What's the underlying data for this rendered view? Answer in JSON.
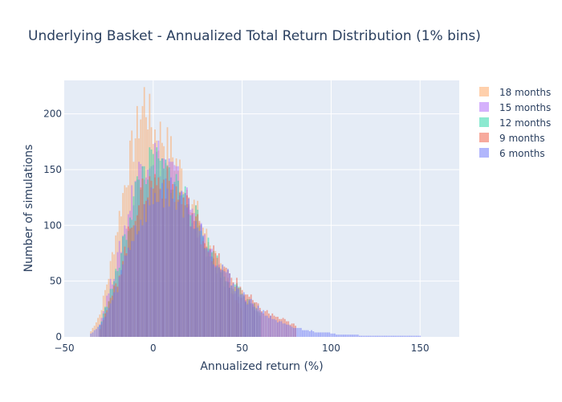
{
  "chart_data": {
    "type": "bar",
    "title": "Underlying Basket - Annualized Total Return Distribution (1% bins)",
    "xlabel": "Annualized return (%)",
    "ylabel": "Number of simulations",
    "xlim": [
      -50,
      172
    ],
    "ylim": [
      0,
      230
    ],
    "x_ticks": [
      -50,
      0,
      50,
      100,
      150
    ],
    "y_ticks": [
      0,
      50,
      100,
      150,
      200
    ],
    "bin_width_pct": 1,
    "barmode": "overlay",
    "legend_position": "right",
    "plot_bgcolor": "#e5ecf6",
    "series": [
      {
        "name": "18 months",
        "color": "#FFA15A",
        "opacity": 0.5,
        "peaks": [
          {
            "x": -35,
            "y": 5
          },
          {
            "x": -30,
            "y": 20
          },
          {
            "x": -25,
            "y": 55
          },
          {
            "x": -20,
            "y": 100
          },
          {
            "x": -15,
            "y": 145
          },
          {
            "x": -10,
            "y": 180
          },
          {
            "x": -6,
            "y": 205
          },
          {
            "x": -5,
            "y": 215
          },
          {
            "x": -2,
            "y": 195
          },
          {
            "x": 0,
            "y": 185
          },
          {
            "x": 5,
            "y": 180
          },
          {
            "x": 10,
            "y": 165
          },
          {
            "x": 15,
            "y": 150
          },
          {
            "x": 20,
            "y": 130
          },
          {
            "x": 30,
            "y": 90
          },
          {
            "x": 40,
            "y": 55
          },
          {
            "x": 50,
            "y": 25
          }
        ]
      },
      {
        "name": "15 months",
        "color": "#AB63FA",
        "opacity": 0.5,
        "peaks": [
          {
            "x": -30,
            "y": 12
          },
          {
            "x": -20,
            "y": 70
          },
          {
            "x": -10,
            "y": 140
          },
          {
            "x": -5,
            "y": 160
          },
          {
            "x": 0,
            "y": 165
          },
          {
            "x": 5,
            "y": 160
          },
          {
            "x": 10,
            "y": 150
          },
          {
            "x": 20,
            "y": 120
          },
          {
            "x": 30,
            "y": 80
          },
          {
            "x": 40,
            "y": 50
          },
          {
            "x": 60,
            "y": 20
          }
        ]
      },
      {
        "name": "12 months",
        "color": "#19D3A2",
        "opacity": 0.5,
        "peaks": [
          {
            "x": -30,
            "y": 10
          },
          {
            "x": -20,
            "y": 60
          },
          {
            "x": -10,
            "y": 130
          },
          {
            "x": -5,
            "y": 150
          },
          {
            "x": 0,
            "y": 155
          },
          {
            "x": 5,
            "y": 150
          },
          {
            "x": 10,
            "y": 145
          },
          {
            "x": 20,
            "y": 120
          },
          {
            "x": 30,
            "y": 85
          },
          {
            "x": 40,
            "y": 55
          },
          {
            "x": 60,
            "y": 22
          }
        ]
      },
      {
        "name": "9 months",
        "color": "#EF553B",
        "opacity": 0.5,
        "peaks": [
          {
            "x": -30,
            "y": 8
          },
          {
            "x": -20,
            "y": 50
          },
          {
            "x": -10,
            "y": 115
          },
          {
            "x": -5,
            "y": 130
          },
          {
            "x": 0,
            "y": 140
          },
          {
            "x": 5,
            "y": 140
          },
          {
            "x": 10,
            "y": 135
          },
          {
            "x": 20,
            "y": 115
          },
          {
            "x": 30,
            "y": 85
          },
          {
            "x": 40,
            "y": 60
          },
          {
            "x": 60,
            "y": 25
          },
          {
            "x": 80,
            "y": 10
          }
        ]
      },
      {
        "name": "6 months",
        "color": "#636EFA",
        "opacity": 0.5,
        "peaks": [
          {
            "x": -35,
            "y": 3
          },
          {
            "x": -30,
            "y": 10
          },
          {
            "x": -25,
            "y": 25
          },
          {
            "x": -20,
            "y": 45
          },
          {
            "x": -15,
            "y": 75
          },
          {
            "x": -10,
            "y": 95
          },
          {
            "x": -5,
            "y": 110
          },
          {
            "x": 0,
            "y": 125
          },
          {
            "x": 5,
            "y": 130
          },
          {
            "x": 10,
            "y": 130
          },
          {
            "x": 15,
            "y": 125
          },
          {
            "x": 20,
            "y": 115
          },
          {
            "x": 25,
            "y": 100
          },
          {
            "x": 30,
            "y": 85
          },
          {
            "x": 35,
            "y": 70
          },
          {
            "x": 40,
            "y": 60
          },
          {
            "x": 45,
            "y": 48
          },
          {
            "x": 50,
            "y": 38
          },
          {
            "x": 55,
            "y": 30
          },
          {
            "x": 60,
            "y": 25
          },
          {
            "x": 65,
            "y": 18
          },
          {
            "x": 70,
            "y": 14
          },
          {
            "x": 75,
            "y": 10
          },
          {
            "x": 80,
            "y": 8
          },
          {
            "x": 90,
            "y": 5
          },
          {
            "x": 100,
            "y": 3
          },
          {
            "x": 110,
            "y": 2
          },
          {
            "x": 120,
            "y": 1
          },
          {
            "x": 140,
            "y": 1
          },
          {
            "x": 160,
            "y": 0
          }
        ]
      }
    ]
  }
}
